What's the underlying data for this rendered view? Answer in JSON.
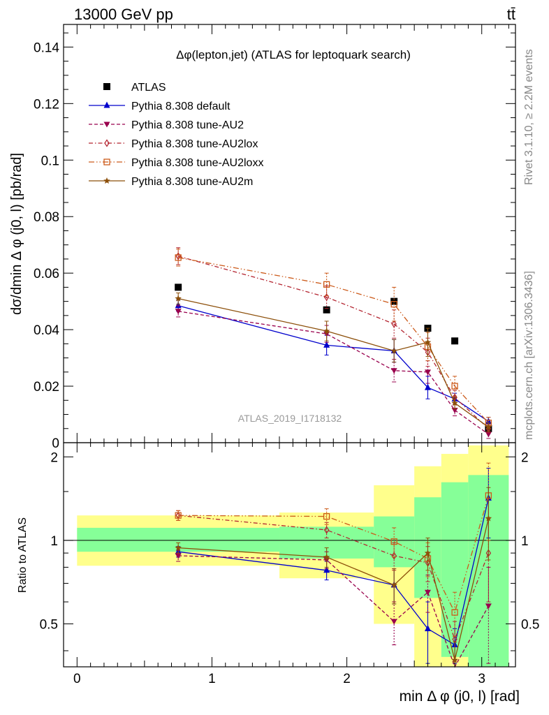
{
  "header": {
    "energy_label": "13000 GeV pp",
    "process_label": "tt̄",
    "side_label_top": "Rivet 3.1.10, ≥ 2.2M events",
    "side_label_bottom": "mcplots.cern.ch [arXiv:1306.3436]",
    "analysis_id": "ATLAS_2019_I1718132"
  },
  "chart_data": [
    {
      "type": "scatter",
      "title": "Δφ(lepton,jet) (ATLAS for leptoquark search)",
      "ylabel": "dσ/dmin Δ φ (j0, l) [pb/rad]",
      "xlabel": "",
      "xlim": [
        -0.1,
        3.25
      ],
      "ylim": [
        0,
        0.148
      ],
      "yticks": [
        0,
        0.02,
        0.04,
        0.06,
        0.08,
        0.1,
        0.12,
        0.14
      ],
      "ytick_labels": [
        "0",
        "0.02",
        "0.04",
        "0.06",
        "0.08",
        "0.1",
        "0.12",
        "0.14"
      ],
      "x": [
        0.75,
        1.85,
        2.35,
        2.6,
        2.8,
        3.05
      ],
      "series": [
        {
          "name": "ATLAS",
          "color": "#000000",
          "marker": "square-filled",
          "line": "none",
          "values": [
            0.055,
            0.047,
            0.05,
            0.0405,
            0.036,
            0.005
          ]
        },
        {
          "name": "Pythia 8.308 default",
          "color": "#0000cc",
          "marker": "triangle-up",
          "line": "solid",
          "values": [
            0.0485,
            0.0345,
            0.0325,
            0.0195,
            0.0155,
            0.0075
          ],
          "errors": [
            0.002,
            0.0035,
            0.004,
            0.004,
            0.002,
            0.0015
          ]
        },
        {
          "name": "Pythia 8.308 tune-AU2",
          "color": "#99004d",
          "marker": "triangle-down",
          "line": "dashed",
          "values": [
            0.0465,
            0.0385,
            0.0255,
            0.025,
            0.0115,
            0.003
          ],
          "errors": [
            0.002,
            0.003,
            0.004,
            0.004,
            0.002,
            0.0015
          ]
        },
        {
          "name": "Pythia 8.308 tune-AU2lox",
          "color": "#b3232f",
          "marker": "diamond-open",
          "line": "dashdot",
          "values": [
            0.066,
            0.0515,
            0.042,
            0.032,
            0.016,
            0.005
          ],
          "errors": [
            0.003,
            0.004,
            0.005,
            0.005,
            0.0025,
            0.0015
          ]
        },
        {
          "name": "Pythia 8.308 tune-AU2loxx",
          "color": "#cc5a1a",
          "marker": "square-open",
          "line": "dashdotdot",
          "values": [
            0.0655,
            0.056,
            0.049,
            0.034,
            0.02,
            0.007
          ],
          "errors": [
            0.003,
            0.004,
            0.006,
            0.005,
            0.0035,
            0.002
          ]
        },
        {
          "name": "Pythia 8.308 tune-AU2m",
          "color": "#8c4f0a",
          "marker": "star",
          "line": "solid",
          "values": [
            0.051,
            0.0395,
            0.0325,
            0.0355,
            0.014,
            0.0055
          ],
          "errors": [
            0.002,
            0.0035,
            0.004,
            0.005,
            0.002,
            0.0015
          ]
        }
      ]
    },
    {
      "type": "scatter",
      "title": "",
      "ylabel": "Ratio to ATLAS",
      "xlabel": "min Δ φ (j0, l) [rad]",
      "xlim": [
        -0.1,
        3.25
      ],
      "ylim": [
        0.35,
        2.25
      ],
      "log_y": true,
      "yticks": [
        0.5,
        1,
        2
      ],
      "ytick_labels": [
        "0.5",
        "1",
        "2"
      ],
      "xticks": [
        0,
        1,
        2,
        3
      ],
      "xtick_labels": [
        "0",
        "1",
        "2",
        "3"
      ],
      "bin_edges": [
        0,
        1.5,
        2.2,
        2.5,
        2.7,
        2.9,
        3.2
      ],
      "band_inner": [
        [
          0.91,
          1.11
        ],
        [
          0.86,
          1.12
        ],
        [
          0.8,
          1.22
        ],
        [
          0.62,
          1.43
        ],
        [
          0.38,
          1.62
        ],
        [
          0.35,
          1.72
        ]
      ],
      "band_outer": [
        [
          0.81,
          1.23
        ],
        [
          0.73,
          1.26
        ],
        [
          0.5,
          1.58
        ],
        [
          0.35,
          1.85
        ],
        [
          0.35,
          2.05
        ],
        [
          0.35,
          2.2
        ]
      ],
      "x": [
        0.75,
        1.85,
        2.35,
        2.6,
        2.8,
        3.05
      ],
      "series": [
        {
          "name": "Pythia 8.308 default",
          "color": "#0000cc",
          "marker": "triangle-up",
          "line": "solid",
          "values": [
            0.91,
            0.78,
            0.69,
            0.48,
            0.42,
            1.42
          ],
          "errors": [
            0.04,
            0.06,
            0.1,
            0.12,
            0.06,
            0.4
          ]
        },
        {
          "name": "Pythia 8.308 tune-AU2",
          "color": "#99004d",
          "marker": "triangle-down",
          "line": "dashed",
          "values": [
            0.88,
            0.85,
            0.51,
            0.65,
            0.32,
            0.58
          ],
          "errors": [
            0.04,
            0.06,
            0.09,
            0.1,
            0.05,
            0.22
          ]
        },
        {
          "name": "Pythia 8.308 tune-AU2lox",
          "color": "#b3232f",
          "marker": "diamond-open",
          "line": "dashdot",
          "values": [
            1.23,
            1.09,
            0.88,
            0.83,
            0.44,
            0.9
          ],
          "errors": [
            0.05,
            0.07,
            0.1,
            0.12,
            0.07,
            0.3
          ]
        },
        {
          "name": "Pythia 8.308 tune-AU2loxx",
          "color": "#cc5a1a",
          "marker": "square-open",
          "line": "dashdotdot",
          "values": [
            1.23,
            1.22,
            0.99,
            0.86,
            0.55,
            1.45
          ],
          "errors": [
            0.05,
            0.08,
            0.12,
            0.12,
            0.1,
            0.45
          ]
        },
        {
          "name": "Pythia 8.308 tune-AU2m",
          "color": "#8c4f0a",
          "marker": "star",
          "line": "solid",
          "values": [
            0.94,
            0.87,
            0.69,
            0.9,
            0.37,
            1.2
          ],
          "errors": [
            0.04,
            0.07,
            0.1,
            0.12,
            0.06,
            0.35
          ]
        }
      ]
    }
  ]
}
